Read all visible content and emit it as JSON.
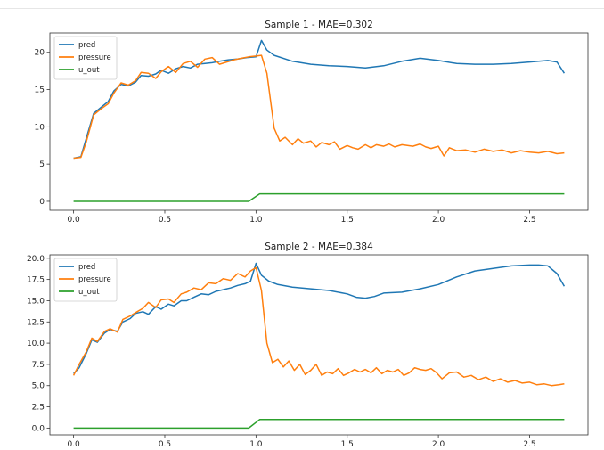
{
  "chart_data": [
    {
      "type": "line",
      "title": "Sample 1 - MAE=0.302",
      "xlabel": "",
      "ylabel": "",
      "xlim": [
        -0.13,
        2.82
      ],
      "ylim": [
        -1.2,
        22.6
      ],
      "xticks": [
        0.0,
        0.5,
        1.0,
        1.5,
        2.0,
        2.5
      ],
      "xtick_labels": [
        "0.0",
        "0.5",
        "1.0",
        "1.5",
        "2.0",
        "2.5"
      ],
      "yticks": [
        0,
        5,
        10,
        15,
        20
      ],
      "ytick_labels": [
        "0",
        "5",
        "10",
        "15",
        "20"
      ],
      "legend": {
        "placement": "top-left",
        "entries": [
          "pred",
          "pressure",
          "u_out"
        ]
      },
      "grid": false,
      "series": [
        {
          "name": "pred",
          "color": "#1f77b4",
          "x": [
            0.0,
            0.04,
            0.07,
            0.11,
            0.15,
            0.19,
            0.22,
            0.26,
            0.3,
            0.34,
            0.37,
            0.41,
            0.45,
            0.48,
            0.52,
            0.56,
            0.6,
            0.64,
            0.68,
            0.72,
            0.76,
            0.8,
            0.85,
            0.9,
            0.95,
            1.0,
            1.03,
            1.06,
            1.1,
            1.2,
            1.3,
            1.4,
            1.5,
            1.6,
            1.7,
            1.8,
            1.9,
            2.0,
            2.1,
            2.2,
            2.3,
            2.4,
            2.5,
            2.6,
            2.65,
            2.69
          ],
          "y": [
            5.8,
            6.0,
            8.5,
            11.8,
            12.6,
            13.4,
            14.8,
            15.7,
            15.5,
            16.0,
            16.9,
            16.8,
            17.1,
            17.6,
            17.2,
            17.8,
            18.1,
            17.9,
            18.4,
            18.5,
            18.6,
            18.8,
            19.0,
            19.1,
            19.3,
            19.4,
            21.6,
            20.3,
            19.6,
            18.8,
            18.4,
            18.2,
            18.1,
            17.9,
            18.2,
            18.8,
            19.2,
            18.9,
            18.5,
            18.4,
            18.4,
            18.5,
            18.7,
            18.9,
            18.7,
            17.2
          ]
        },
        {
          "name": "pressure",
          "color": "#ff7f0e",
          "x": [
            0.0,
            0.04,
            0.07,
            0.11,
            0.15,
            0.19,
            0.22,
            0.26,
            0.3,
            0.34,
            0.37,
            0.41,
            0.45,
            0.48,
            0.52,
            0.56,
            0.6,
            0.64,
            0.68,
            0.72,
            0.76,
            0.8,
            0.84,
            0.88,
            0.92,
            0.96,
            1.0,
            1.03,
            1.06,
            1.1,
            1.13,
            1.16,
            1.2,
            1.23,
            1.26,
            1.3,
            1.33,
            1.36,
            1.4,
            1.43,
            1.46,
            1.5,
            1.53,
            1.56,
            1.6,
            1.63,
            1.66,
            1.7,
            1.73,
            1.76,
            1.8,
            1.83,
            1.86,
            1.9,
            1.93,
            1.96,
            2.0,
            2.03,
            2.06,
            2.1,
            2.15,
            2.2,
            2.25,
            2.3,
            2.35,
            2.4,
            2.45,
            2.5,
            2.55,
            2.6,
            2.65,
            2.69
          ],
          "y": [
            5.8,
            5.9,
            8.0,
            11.6,
            12.4,
            13.1,
            14.5,
            15.9,
            15.6,
            16.2,
            17.3,
            17.2,
            16.5,
            17.4,
            18.1,
            17.3,
            18.5,
            18.8,
            18.0,
            19.1,
            19.3,
            18.4,
            18.7,
            19.0,
            19.2,
            19.4,
            19.5,
            19.6,
            17.2,
            9.8,
            8.1,
            8.6,
            7.6,
            8.4,
            7.8,
            8.1,
            7.3,
            7.9,
            7.6,
            8.0,
            7.0,
            7.5,
            7.2,
            7.0,
            7.6,
            7.2,
            7.6,
            7.4,
            7.7,
            7.3,
            7.6,
            7.5,
            7.4,
            7.7,
            7.3,
            7.1,
            7.4,
            6.1,
            7.2,
            6.8,
            6.9,
            6.6,
            7.0,
            6.7,
            6.9,
            6.5,
            6.8,
            6.6,
            6.5,
            6.7,
            6.4,
            6.5
          ]
        },
        {
          "name": "u_out",
          "color": "#2ca02c",
          "x": [
            0.0,
            0.96,
            1.02,
            2.69
          ],
          "y": [
            0,
            0,
            1,
            1
          ]
        }
      ]
    },
    {
      "type": "line",
      "title": "Sample 2 - MAE=0.384",
      "xlabel": "",
      "ylabel": "",
      "xlim": [
        -0.13,
        2.82
      ],
      "ylim": [
        -0.8,
        20.4
      ],
      "xticks": [
        0.0,
        0.5,
        1.0,
        1.5,
        2.0,
        2.5
      ],
      "xtick_labels": [
        "0.0",
        "0.5",
        "1.0",
        "1.5",
        "2.0",
        "2.5"
      ],
      "yticks": [
        0.0,
        2.5,
        5.0,
        7.5,
        10.0,
        12.5,
        15.0,
        17.5,
        20.0
      ],
      "ytick_labels": [
        "0.0",
        "2.5",
        "5.0",
        "7.5",
        "10.0",
        "12.5",
        "15.0",
        "17.5",
        "20.0"
      ],
      "legend": {
        "placement": "top-left",
        "entries": [
          "pred",
          "pressure",
          "u_out"
        ]
      },
      "grid": false,
      "series": [
        {
          "name": "pred",
          "color": "#1f77b4",
          "x": [
            0.0,
            0.03,
            0.07,
            0.1,
            0.13,
            0.17,
            0.2,
            0.24,
            0.27,
            0.31,
            0.34,
            0.38,
            0.41,
            0.45,
            0.48,
            0.52,
            0.55,
            0.59,
            0.62,
            0.66,
            0.7,
            0.74,
            0.78,
            0.82,
            0.86,
            0.9,
            0.94,
            0.97,
            1.0,
            1.03,
            1.07,
            1.12,
            1.2,
            1.3,
            1.4,
            1.5,
            1.55,
            1.6,
            1.65,
            1.7,
            1.8,
            1.9,
            2.0,
            2.1,
            2.2,
            2.3,
            2.4,
            2.5,
            2.55,
            2.6,
            2.65,
            2.69
          ],
          "y": [
            6.4,
            7.1,
            8.8,
            10.4,
            10.1,
            11.2,
            11.6,
            11.4,
            12.5,
            12.9,
            13.5,
            13.7,
            13.4,
            14.3,
            14.0,
            14.6,
            14.4,
            15.0,
            15.0,
            15.4,
            15.8,
            15.7,
            16.1,
            16.3,
            16.5,
            16.8,
            17.0,
            17.3,
            19.4,
            18.0,
            17.3,
            16.9,
            16.6,
            16.4,
            16.2,
            15.8,
            15.4,
            15.3,
            15.5,
            15.9,
            16.0,
            16.4,
            16.9,
            17.8,
            18.5,
            18.8,
            19.1,
            19.2,
            19.2,
            19.1,
            18.2,
            16.7
          ]
        },
        {
          "name": "pressure",
          "color": "#ff7f0e",
          "x": [
            0.0,
            0.03,
            0.07,
            0.1,
            0.13,
            0.17,
            0.2,
            0.24,
            0.27,
            0.31,
            0.34,
            0.38,
            0.41,
            0.45,
            0.48,
            0.52,
            0.55,
            0.59,
            0.62,
            0.66,
            0.7,
            0.74,
            0.78,
            0.82,
            0.86,
            0.9,
            0.94,
            0.97,
            1.0,
            1.03,
            1.06,
            1.09,
            1.12,
            1.15,
            1.18,
            1.21,
            1.24,
            1.27,
            1.3,
            1.33,
            1.36,
            1.39,
            1.42,
            1.45,
            1.48,
            1.51,
            1.54,
            1.57,
            1.6,
            1.63,
            1.66,
            1.69,
            1.72,
            1.75,
            1.78,
            1.81,
            1.84,
            1.87,
            1.9,
            1.93,
            1.96,
            1.99,
            2.02,
            2.06,
            2.1,
            2.14,
            2.18,
            2.22,
            2.26,
            2.3,
            2.34,
            2.38,
            2.42,
            2.46,
            2.5,
            2.54,
            2.58,
            2.62,
            2.66,
            2.69
          ],
          "y": [
            6.2,
            7.5,
            9.0,
            10.6,
            10.2,
            11.4,
            11.7,
            11.3,
            12.8,
            13.2,
            13.6,
            14.1,
            14.8,
            14.2,
            15.1,
            15.2,
            14.8,
            15.8,
            16.0,
            16.5,
            16.3,
            17.1,
            17.0,
            17.6,
            17.4,
            18.2,
            17.8,
            18.5,
            18.9,
            16.2,
            10.0,
            7.7,
            8.1,
            7.2,
            7.9,
            6.8,
            7.5,
            6.3,
            6.8,
            7.5,
            6.2,
            6.6,
            6.4,
            7.0,
            6.2,
            6.5,
            6.9,
            6.6,
            6.9,
            6.5,
            7.1,
            6.4,
            6.8,
            6.6,
            6.9,
            6.2,
            6.5,
            7.1,
            6.9,
            6.8,
            7.0,
            6.5,
            5.8,
            6.5,
            6.6,
            6.0,
            6.2,
            5.7,
            6.0,
            5.5,
            5.8,
            5.4,
            5.6,
            5.3,
            5.4,
            5.1,
            5.2,
            5.0,
            5.1,
            5.2
          ]
        },
        {
          "name": "u_out",
          "color": "#2ca02c",
          "x": [
            0.0,
            0.96,
            1.02,
            2.69
          ],
          "y": [
            0,
            0,
            1,
            1
          ]
        }
      ]
    }
  ]
}
